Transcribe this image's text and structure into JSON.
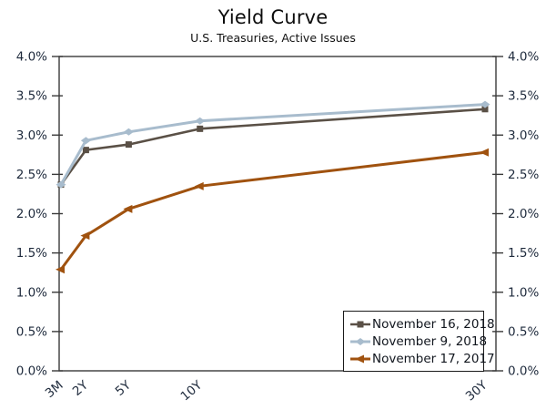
{
  "chart_data": {
    "type": "line",
    "title": "Yield Curve",
    "subtitle": "U.S. Treasuries, Active Issues",
    "x_tick_labels": [
      "3M",
      "2Y",
      "5Y",
      "10Y",
      "30Y"
    ],
    "x_values_years": [
      0.25,
      2,
      5,
      10,
      30
    ],
    "y_axis": {
      "min": 0,
      "max": 4,
      "tick_step": 0.5,
      "tick_labels": [
        "0.0%",
        "0.5%",
        "1.0%",
        "1.5%",
        "2.0%",
        "2.5%",
        "3.0%",
        "3.5%",
        "4.0%"
      ],
      "sides": [
        "left",
        "right"
      ]
    },
    "grid": false,
    "frame_color": "#3a3a3a",
    "axis_label_color": "#1e2a3c",
    "legend": {
      "position": "inside-bottom-right",
      "background": "#ffffff",
      "border_color": "#1a1a1a"
    },
    "series": [
      {
        "name": "November 16, 2018",
        "color": "#5a5046",
        "marker": "square",
        "line_width": 2.6,
        "values": [
          2.37,
          2.81,
          2.88,
          3.08,
          3.33
        ]
      },
      {
        "name": "November 9, 2018",
        "color": "#a8bccd",
        "marker": "diamond",
        "line_width": 3,
        "values": [
          2.37,
          2.93,
          3.04,
          3.18,
          3.39
        ]
      },
      {
        "name": "November 17, 2017",
        "color": "#a0520f",
        "marker": "triangle-left",
        "line_width": 3,
        "values": [
          1.29,
          1.72,
          2.06,
          2.35,
          2.78
        ]
      }
    ]
  }
}
